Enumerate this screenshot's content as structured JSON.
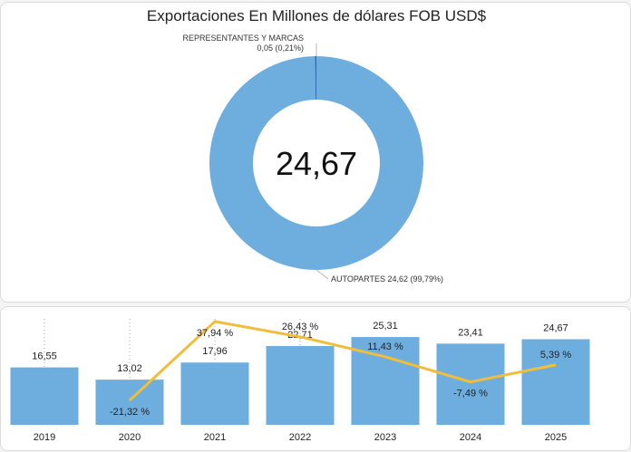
{
  "chart_data": [
    {
      "type": "pie",
      "variant": "donut",
      "title": "Exportaciones En Millones de dólares FOB USD$",
      "center_label": "24,67",
      "slices": [
        {
          "name": "AUTOPARTES",
          "value": 24.62,
          "percent": 99.79,
          "label": "AUTOPARTES 24,62 (99,79%)",
          "color": "#6eaedf"
        },
        {
          "name": "REPRESENTANTES Y MARCAS",
          "value": 0.05,
          "percent": 0.21,
          "label": "REPRESENTANTES Y MARCAS",
          "sublabel": "0,05 (0,21%)",
          "color": "#2b6cb0"
        }
      ]
    },
    {
      "type": "bar",
      "combo": "bar+line",
      "categories": [
        "2019",
        "2020",
        "2021",
        "2022",
        "2023",
        "2024",
        "2025"
      ],
      "series": [
        {
          "type": "bar",
          "values": [
            16.55,
            13.02,
            17.96,
            22.71,
            25.31,
            23.41,
            24.67
          ],
          "labels": [
            "16,55",
            "13,02",
            "17,96",
            "22,71",
            "25,31",
            "23,41",
            "24,67"
          ],
          "color": "#6eaedf"
        },
        {
          "type": "line",
          "values": [
            null,
            -21.32,
            37.94,
            26.43,
            11.43,
            -7.49,
            5.39
          ],
          "labels": [
            "",
            "-21,32 %",
            "37,94 %",
            "26,43 %",
            "11,43 %",
            "-7,49 %",
            "5,39 %"
          ],
          "color": "#f0be3c"
        }
      ],
      "grid": false
    }
  ]
}
